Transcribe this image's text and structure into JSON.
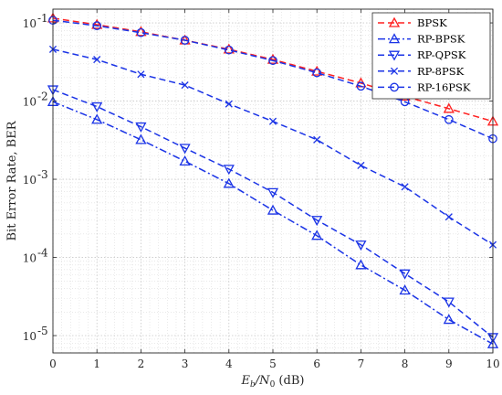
{
  "chart_data": {
    "type": "line",
    "title": "",
    "xlabel": {
      "main": "E",
      "sub1": "b",
      "mid": "/N",
      "sub2": "0",
      "unit": " (dB)"
    },
    "ylabel": "Bit Error Rate, BER",
    "xlim": [
      0,
      10
    ],
    "ylim": [
      6e-06,
      0.15
    ],
    "yscale": "log",
    "grid": true,
    "minor_grid": true,
    "legend_position": "top-right",
    "x": [
      0,
      1,
      2,
      3,
      4,
      5,
      6,
      7,
      8,
      9,
      10
    ],
    "x_tick_labels": [
      "0",
      "1",
      "2",
      "3",
      "4",
      "5",
      "6",
      "7",
      "8",
      "9",
      "10"
    ],
    "y_ticks": [
      {
        "value": 0.1,
        "base": "10",
        "exp": "-1"
      },
      {
        "value": 0.01,
        "base": "10",
        "exp": "-2"
      },
      {
        "value": 0.001,
        "base": "10",
        "exp": "-3"
      },
      {
        "value": 0.0001,
        "base": "10",
        "exp": "-4"
      },
      {
        "value": 1e-05,
        "base": "10",
        "exp": "-5"
      }
    ],
    "series": [
      {
        "name": "BPSK",
        "color": "#ff2020",
        "dash": "dash",
        "marker": "triangle-up",
        "values": [
          0.115,
          0.095,
          0.077,
          0.06,
          0.046,
          0.034,
          0.024,
          0.017,
          0.0115,
          0.008,
          0.0055
        ]
      },
      {
        "name": "RP-BPSK",
        "color": "#1a33e6",
        "dash": "dashdot",
        "marker": "triangle-up",
        "values": [
          0.0098,
          0.0058,
          0.0032,
          0.0017,
          0.00088,
          0.0004,
          0.00019,
          8e-05,
          3.8e-05,
          1.6e-05,
          7.8e-06
        ]
      },
      {
        "name": "RP-QPSK",
        "color": "#1a33e6",
        "dash": "dash",
        "marker": "triangle-down",
        "values": [
          0.014,
          0.0085,
          0.0047,
          0.0025,
          0.00135,
          0.00068,
          0.0003,
          0.000145,
          6.2e-05,
          2.7e-05,
          9.5e-06
        ]
      },
      {
        "name": "RP-8PSK",
        "color": "#1a33e6",
        "dash": "dash",
        "marker": "x",
        "values": [
          0.046,
          0.034,
          0.022,
          0.016,
          0.0092,
          0.0055,
          0.0032,
          0.0015,
          0.0008,
          0.00033,
          0.000145
        ]
      },
      {
        "name": "RP-16PSK",
        "color": "#1a33e6",
        "dash": "dash",
        "marker": "circle",
        "values": [
          0.108,
          0.092,
          0.075,
          0.06,
          0.045,
          0.033,
          0.023,
          0.0155,
          0.0098,
          0.0058,
          0.0033
        ]
      }
    ]
  }
}
